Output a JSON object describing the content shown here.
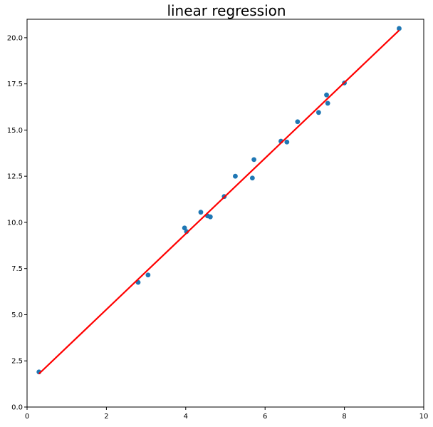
{
  "chart_data": {
    "type": "scatter",
    "title": "linear regression",
    "xlabel": "",
    "ylabel": "",
    "xlim": [
      0,
      10
    ],
    "ylim": [
      0,
      21
    ],
    "xticks": [
      0,
      2,
      4,
      6,
      8,
      10
    ],
    "xtick_labels": [
      "0",
      "2",
      "4",
      "6",
      "8",
      "10"
    ],
    "yticks": [
      0.0,
      2.5,
      5.0,
      7.5,
      10.0,
      12.5,
      15.0,
      17.5,
      20.0
    ],
    "ytick_labels": [
      "0.0",
      "2.5",
      "5.0",
      "7.5",
      "10.0",
      "12.5",
      "15.0",
      "17.5",
      "20.0"
    ],
    "grid": false,
    "legend": false,
    "series": [
      {
        "type": "scatter",
        "color": "#1f77b4",
        "points": [
          {
            "x": 0.3,
            "y": 1.9
          },
          {
            "x": 2.8,
            "y": 6.75
          },
          {
            "x": 3.05,
            "y": 7.15
          },
          {
            "x": 3.97,
            "y": 9.7
          },
          {
            "x": 4.02,
            "y": 9.5
          },
          {
            "x": 4.38,
            "y": 10.55
          },
          {
            "x": 4.55,
            "y": 10.35
          },
          {
            "x": 4.62,
            "y": 10.3
          },
          {
            "x": 4.97,
            "y": 11.4
          },
          {
            "x": 5.25,
            "y": 12.5
          },
          {
            "x": 5.68,
            "y": 12.4
          },
          {
            "x": 5.72,
            "y": 13.4
          },
          {
            "x": 6.4,
            "y": 14.4
          },
          {
            "x": 6.55,
            "y": 14.35
          },
          {
            "x": 6.82,
            "y": 15.45
          },
          {
            "x": 7.35,
            "y": 15.95
          },
          {
            "x": 7.55,
            "y": 16.9
          },
          {
            "x": 7.58,
            "y": 16.45
          },
          {
            "x": 8.0,
            "y": 17.55
          },
          {
            "x": 9.38,
            "y": 20.5
          }
        ]
      },
      {
        "type": "line",
        "color": "#ff0000",
        "points": [
          {
            "x": 0.3,
            "y": 1.8
          },
          {
            "x": 9.38,
            "y": 20.4
          }
        ]
      }
    ]
  }
}
